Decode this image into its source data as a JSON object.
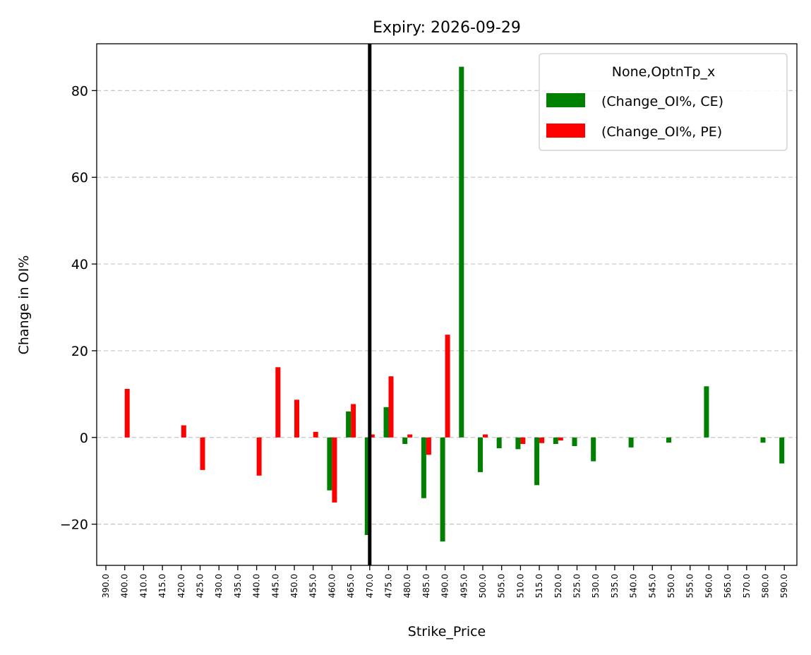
{
  "chart_data": {
    "type": "bar",
    "title": "Expiry: 2026-09-29",
    "xlabel": "Strike_Price",
    "ylabel": "Change in OI%",
    "ylim": [
      -29.5,
      90.8
    ],
    "yticks": [
      -20,
      0,
      20,
      40,
      60,
      80
    ],
    "ytick_labels": [
      "−20",
      "0",
      "20",
      "40",
      "60",
      "80"
    ],
    "grid": "y, dashed",
    "legend": {
      "title": "None,OptnTp_x",
      "placement": "top-right"
    },
    "current_strike": "470.0",
    "categories": [
      "390.0",
      "400.0",
      "410.0",
      "415.0",
      "420.0",
      "425.0",
      "430.0",
      "435.0",
      "440.0",
      "445.0",
      "450.0",
      "455.0",
      "460.0",
      "465.0",
      "470.0",
      "475.0",
      "480.0",
      "485.0",
      "490.0",
      "495.0",
      "500.0",
      "505.0",
      "510.0",
      "515.0",
      "520.0",
      "525.0",
      "530.0",
      "535.0",
      "540.0",
      "545.0",
      "550.0",
      "555.0",
      "560.0",
      "565.0",
      "570.0",
      "580.0",
      "590.0"
    ],
    "series": [
      {
        "name": "(Change_OI%, CE)",
        "color": "#008000",
        "values": [
          0,
          0,
          0,
          0,
          0,
          0,
          0,
          0,
          0,
          0,
          0,
          0,
          -12.2,
          6.0,
          -22.5,
          7.0,
          -1.5,
          -14.0,
          -24.0,
          85.5,
          -8.0,
          -2.5,
          -2.7,
          -11.0,
          -1.5,
          -2.0,
          -5.5,
          0,
          -2.3,
          0,
          -1.2,
          0,
          11.8,
          0,
          0,
          -1.2,
          -6.0
        ]
      },
      {
        "name": "(Change_OI%, PE)",
        "color": "#ff0000",
        "values": [
          0,
          11.2,
          0,
          0,
          2.8,
          -7.5,
          0,
          0,
          -8.8,
          16.2,
          8.7,
          1.3,
          -15.0,
          7.7,
          0.7,
          14.1,
          0.7,
          -4.0,
          23.7,
          0,
          0.7,
          0,
          -1.5,
          -1.3,
          -0.7,
          0,
          0,
          0,
          0,
          0,
          0,
          0,
          0,
          0,
          0,
          0,
          0
        ]
      }
    ]
  }
}
